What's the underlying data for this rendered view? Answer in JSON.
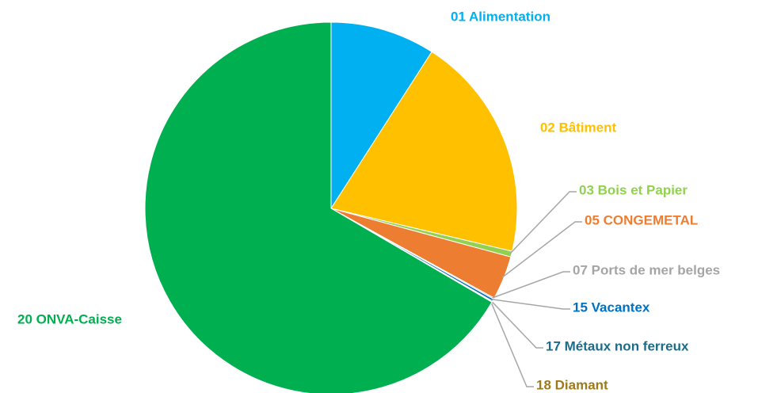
{
  "chart_data": {
    "type": "pie",
    "categories": [
      "01 Alimentation",
      "02 Bâtiment",
      "03 Bois et Papier",
      "05 CONGEMETAL",
      "07 Ports de mer belges",
      "15 Vacantex",
      "17 Métaux non ferreux",
      "18 Diamant",
      "20 ONVA-Caisse"
    ],
    "values": [
      9.1,
      19.6,
      0.5,
      3.8,
      0.1,
      0.2,
      0.05,
      0.05,
      66.6
    ],
    "colors": [
      "#00b0f0",
      "#ffc000",
      "#92d050",
      "#ed7d31",
      "#a5a5a5",
      "#0070c0",
      "#1a6d8a",
      "#9c7a1c",
      "#00b050"
    ]
  }
}
